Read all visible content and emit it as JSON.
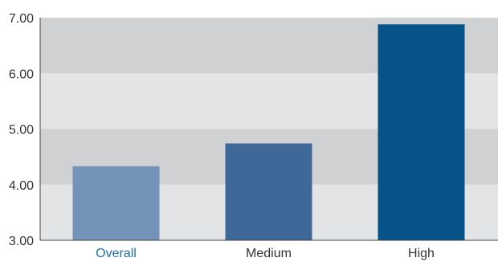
{
  "chart_data": {
    "type": "bar",
    "categories": [
      "Overall",
      "Medium",
      "High"
    ],
    "values": [
      4.33,
      4.74,
      6.88
    ],
    "ylim": [
      3.0,
      7.0
    ],
    "yticks": [
      "3.00",
      "4.00",
      "5.00",
      "6.00",
      "7.00"
    ],
    "xlabel": "",
    "ylabel": "",
    "title": "",
    "grid": "alternating horizontal bands",
    "legend": "none"
  },
  "colors": {
    "bars": [
      "#7393b9",
      "#3d6898",
      "#06538a"
    ],
    "band_dark": "#d0d1d3",
    "band_light": "#e3e4e6",
    "tick_text": "#333333",
    "highlight_label": "#1f6fa8",
    "axis_line": "#444444"
  }
}
